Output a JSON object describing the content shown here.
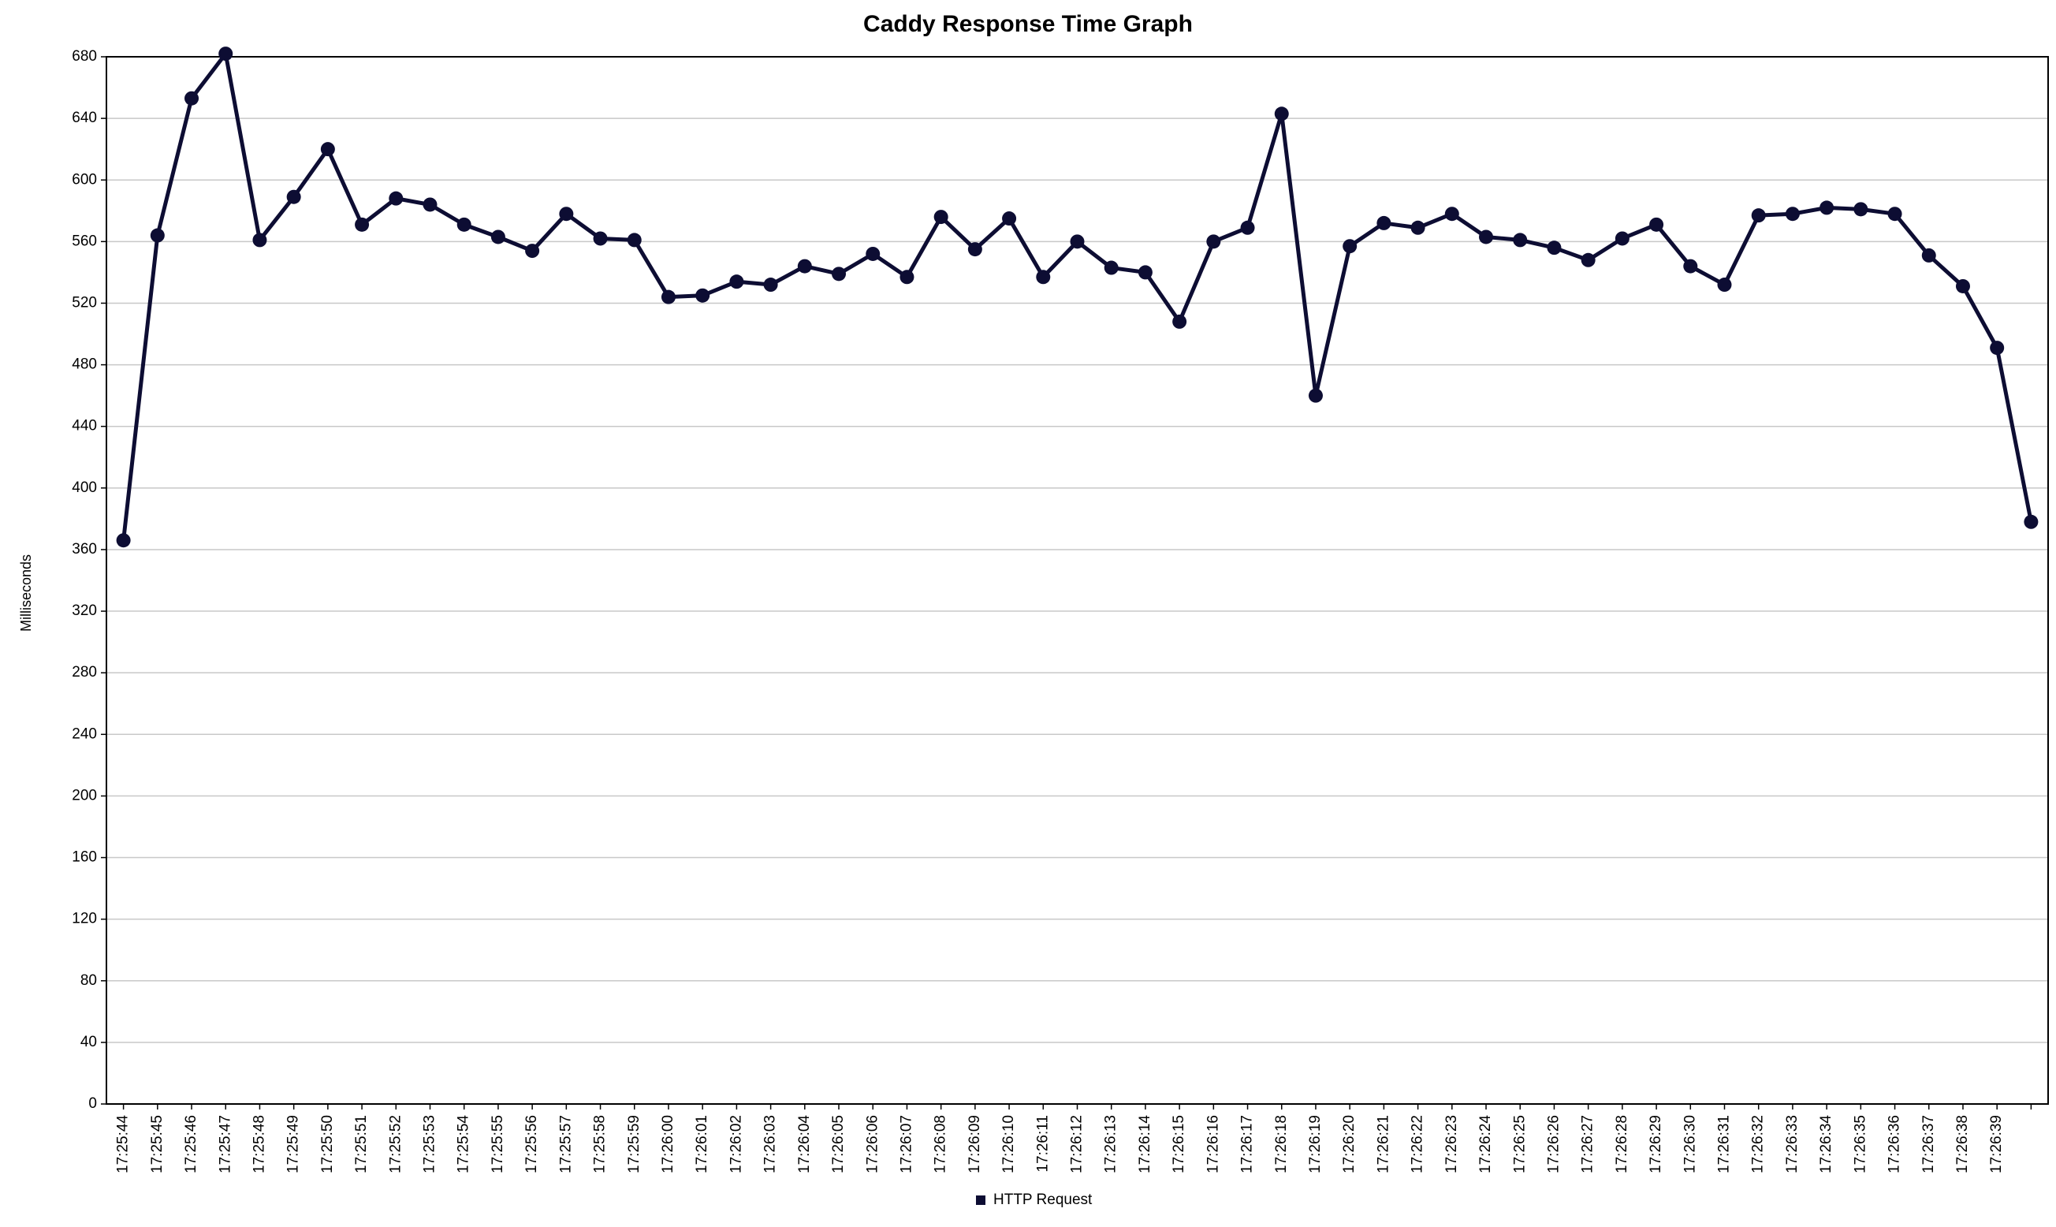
{
  "chart_data": {
    "type": "line",
    "title": "Caddy Response Time Graph",
    "y_label": "Milliseconds",
    "categories": [
      "17:25:44",
      "17:25:45",
      "17:25:46",
      "17:25:47",
      "17:25:48",
      "17:25:49",
      "17:25:50",
      "17:25:51",
      "17:25:52",
      "17:25:53",
      "17:25:54",
      "17:25:55",
      "17:25:56",
      "17:25:57",
      "17:25:58",
      "17:25:59",
      "17:26:00",
      "17:26:01",
      "17:26:02",
      "17:26:03",
      "17:26:04",
      "17:26:05",
      "17:26:06",
      "17:26:07",
      "17:26:08",
      "17:26:09",
      "17:26:10",
      "17:26:11",
      "17:26:12",
      "17:26:13",
      "17:26:14",
      "17:26:15",
      "17:26:16",
      "17:26:17",
      "17:26:18",
      "17:26:19",
      "17:26:20",
      "17:26:21",
      "17:26:22",
      "17:26:23",
      "17:26:24",
      "17:26:25",
      "17:26:26",
      "17:26:27",
      "17:26:28",
      "17:26:29",
      "17:26:30",
      "17:26:31",
      "17:26:32",
      "17:26:33",
      "17:26:34",
      "17:26:35",
      "17:26:36",
      "17:26:37",
      "17:26:38",
      "17:26:39",
      null
    ],
    "series": [
      {
        "name": "HTTP Request",
        "color": "#0d0d33",
        "values": [
          366,
          564,
          653,
          682,
          561,
          589,
          620,
          571,
          588,
          584,
          571,
          563,
          554,
          578,
          562,
          561,
          524,
          525,
          534,
          532,
          544,
          539,
          552,
          537,
          576,
          555,
          575,
          537,
          560,
          543,
          540,
          508,
          560,
          569,
          643,
          460,
          557,
          572,
          569,
          578,
          563,
          561,
          556,
          548,
          562,
          571,
          544,
          532,
          577,
          578,
          582,
          581,
          578,
          551,
          531,
          491,
          378
        ]
      }
    ],
    "ylim": [
      0,
      680
    ],
    "yticks": [
      0,
      40,
      80,
      120,
      160,
      200,
      240,
      280,
      320,
      360,
      400,
      440,
      480,
      520,
      560,
      600,
      640,
      680
    ],
    "grid": true,
    "legend": "bottom"
  }
}
